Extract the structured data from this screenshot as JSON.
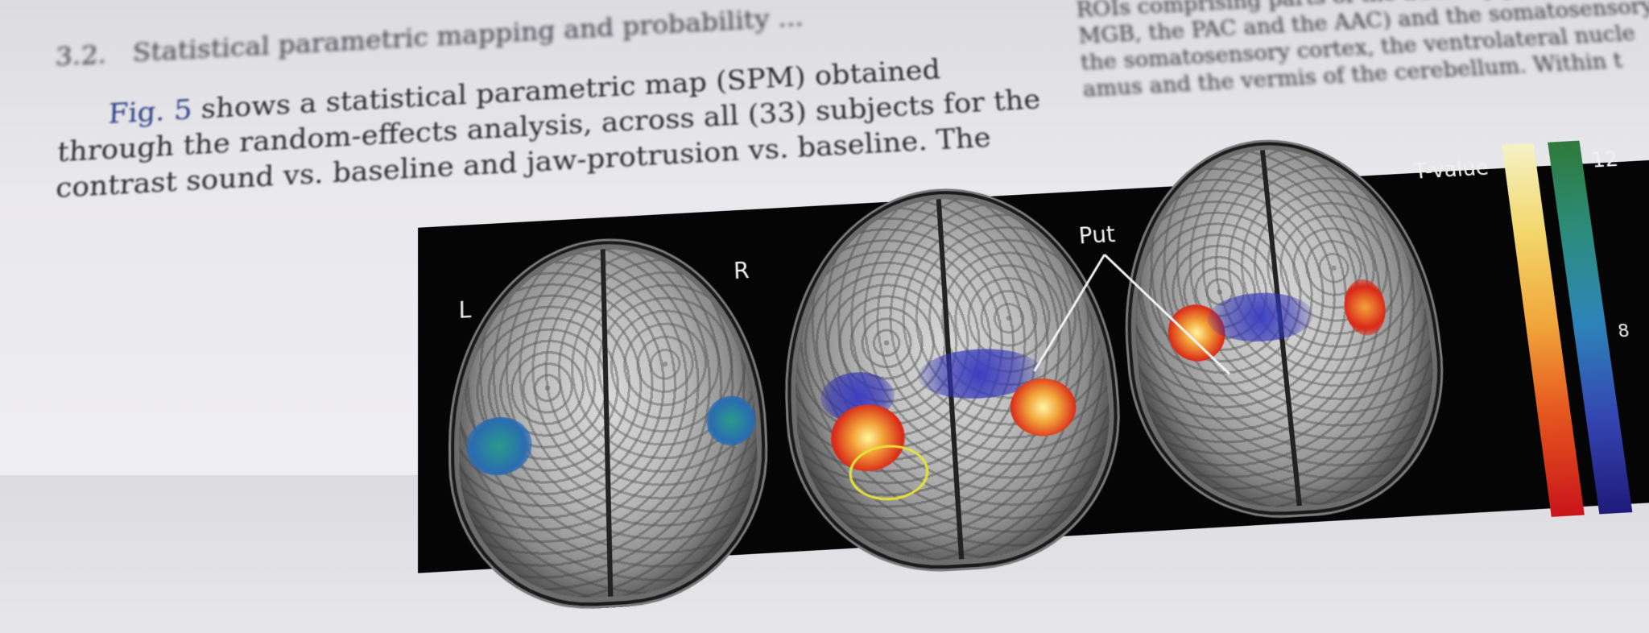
{
  "heading": {
    "number": "3.2.",
    "title": "Statistical parametric mapping and probability ..."
  },
  "paragraph": {
    "lines": [
      "Fig. 5 shows a statistical parametric map (SPM) obtained",
      "through the random-effects analysis, across all (33) subjects for the",
      "contrast sound vs. baseline and jaw-protrusion vs. baseline. The"
    ],
    "ref": "Fig. 5"
  },
  "right_column": {
    "lines": [
      "ROIs comprising parts of the auditory pathway,",
      "MGB, the PAC and the AAC) and the somatosensory",
      "the somatosensory cortex, the ventrolateral nucle",
      "amus and the vermis of the cerebellum. Within t"
    ]
  },
  "figure": {
    "labels": {
      "left": "L",
      "right": "R",
      "put": "Put"
    },
    "colorbar": {
      "title": "T-value",
      "max": "12",
      "min": "8"
    }
  }
}
